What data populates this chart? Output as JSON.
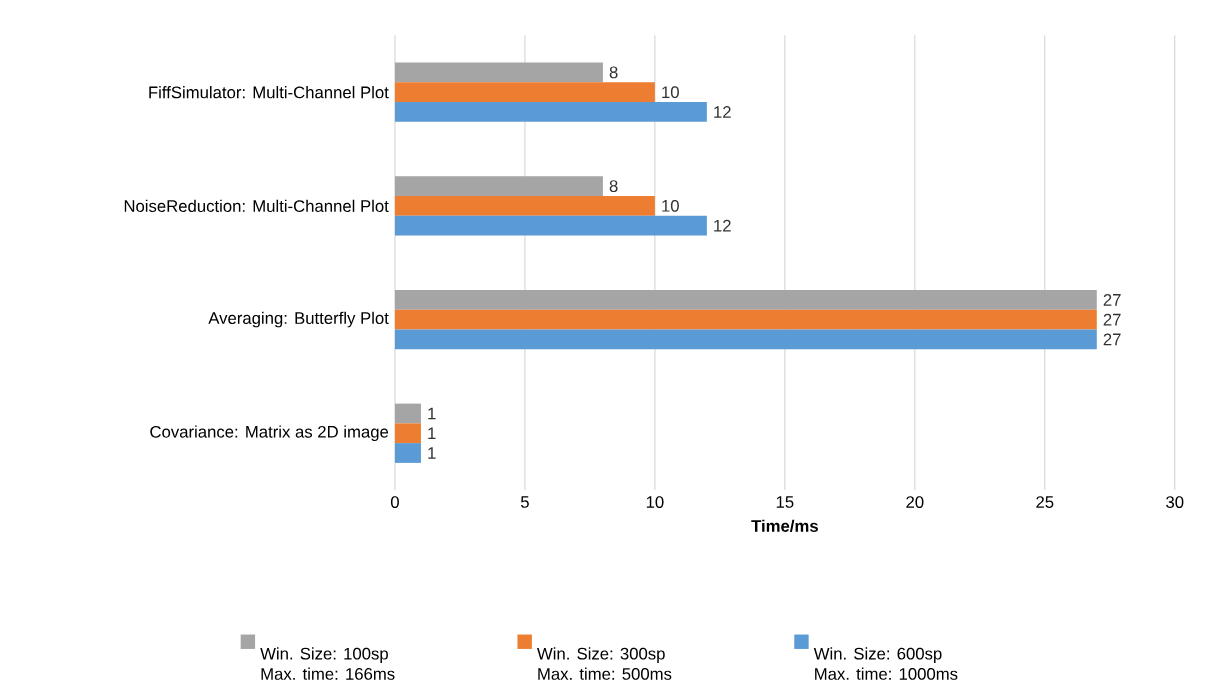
{
  "chart_data": {
    "type": "bar",
    "orientation": "horizontal",
    "xlabel": "Time/ms",
    "categories": [
      "FiffSimulator: Multi-Channel Plot",
      "NoiseReduction: Multi-Channel Plot",
      "Averaging: Butterfly Plot",
      "Covariance: Matrix as 2D image"
    ],
    "series": [
      {
        "name": "Win. Size: 100sp Max. time: 166ms",
        "color": "#a5a5a5",
        "values": [
          8,
          8,
          27,
          1
        ]
      },
      {
        "name": "Win. Size: 300sp Max. time: 500ms",
        "color": "#ed7d31",
        "values": [
          10,
          10,
          27,
          1
        ]
      },
      {
        "name": "Win. Size: 600sp Max. time: 1000ms",
        "color": "#5b9bd5",
        "values": [
          12,
          12,
          27,
          1
        ]
      }
    ],
    "xlim": [
      0,
      30
    ],
    "xticks": [
      0,
      5,
      10,
      15,
      20,
      25,
      30
    ],
    "grid": "x",
    "data_labels": true,
    "legend": "bottom"
  }
}
